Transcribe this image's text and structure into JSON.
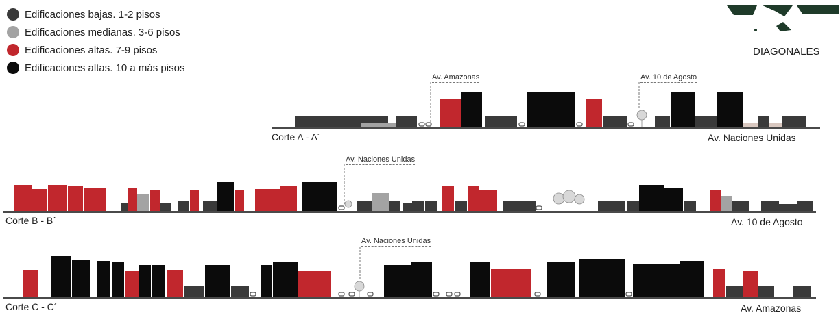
{
  "title": "DIAGONALES",
  "legend": [
    {
      "label": "Edificaciones bajas. 1-2 pisos",
      "color": "#3a3a3a"
    },
    {
      "label": "Edificaciones medianas. 3-6 pisos",
      "color": "#a3a3a3"
    },
    {
      "label": "Edificaciones altas. 7-9 pisos",
      "color": "#c1272d"
    },
    {
      "label": "Edificaciones altas. 10 a más pisos",
      "color": "#0b0b0b"
    }
  ],
  "sections": [
    {
      "label": "Corte A - A´",
      "street": "Av. Naciones Unidas",
      "callouts": [
        "Av. Amazonas",
        "Av. 10 de Agosto"
      ]
    },
    {
      "label": "Corte B - B´",
      "street": "Av. 10 de Agosto",
      "callouts": [
        "Av. Naciones Unidas"
      ]
    },
    {
      "label": "Corte C - C´",
      "street": "Av. Amazonas",
      "callouts": [
        "Av. Naciones Unidas"
      ]
    }
  ],
  "colors": {
    "low": "#3a3a3a",
    "medium": "#a3a3a3",
    "high": "#c1272d",
    "tallest": "#0b0b0b",
    "ground": "#4a4a4a",
    "logo": "#1f3b2a"
  }
}
